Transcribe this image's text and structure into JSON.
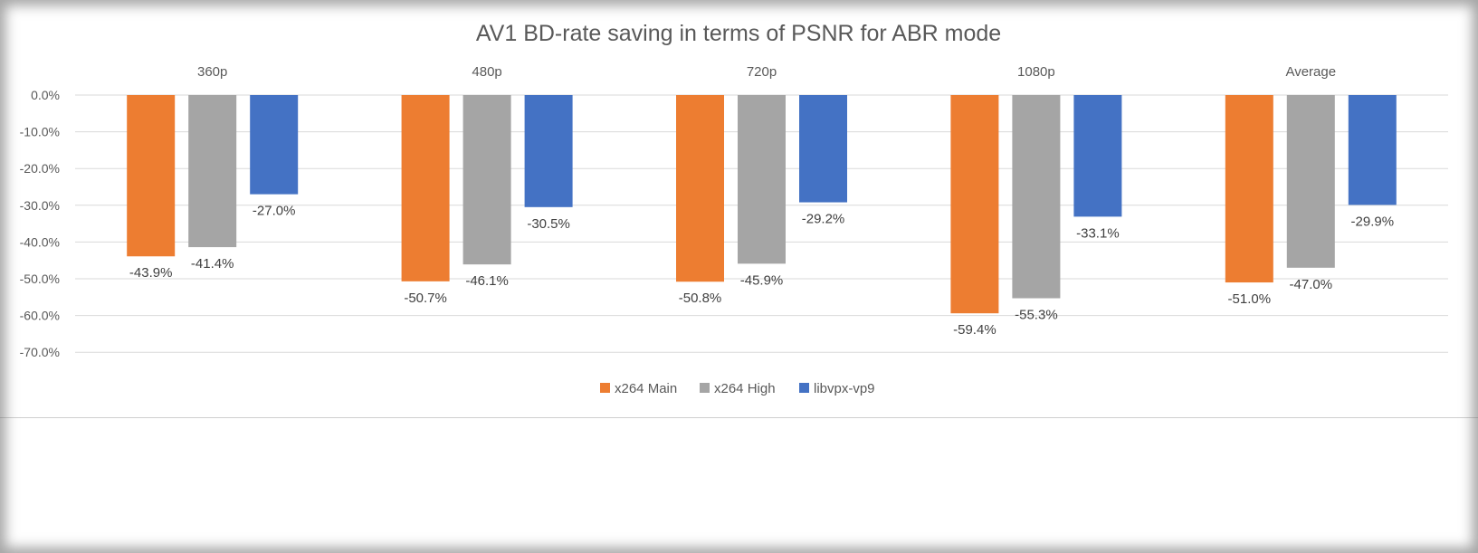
{
  "chart_data": {
    "type": "bar",
    "title": "AV1 BD-rate saving in terms of PSNR for ABR mode",
    "categories": [
      "360p",
      "480p",
      "720p",
      "1080p",
      "Average"
    ],
    "series": [
      {
        "name": "x264 Main",
        "color": "#ED7D31",
        "values": [
          -43.9,
          -50.7,
          -50.8,
          -59.4,
          -51.0
        ]
      },
      {
        "name": "x264 High",
        "color": "#A5A5A5",
        "values": [
          -41.4,
          -46.1,
          -45.9,
          -55.3,
          -47.0
        ]
      },
      {
        "name": "libvpx-vp9",
        "color": "#4472C4",
        "values": [
          -27.0,
          -30.5,
          -29.2,
          -33.1,
          -29.9
        ]
      }
    ],
    "data_labels": [
      [
        "-43.9%",
        "-50.7%",
        "-50.8%",
        "-59.4%",
        "-51.0%"
      ],
      [
        "-41.4%",
        "-46.1%",
        "-45.9%",
        "-55.3%",
        "-47.0%"
      ],
      [
        "-27.0%",
        "-30.5%",
        "-29.2%",
        "-33.1%",
        "-29.9%"
      ]
    ],
    "yticks": [
      "0.0%",
      "-10.0%",
      "-20.0%",
      "-30.0%",
      "-40.0%",
      "-50.0%",
      "-60.0%",
      "-70.0%"
    ],
    "ylim": [
      -70,
      0
    ],
    "xlabel": "",
    "ylabel": "",
    "grid": true,
    "legend": "bottom-center"
  }
}
